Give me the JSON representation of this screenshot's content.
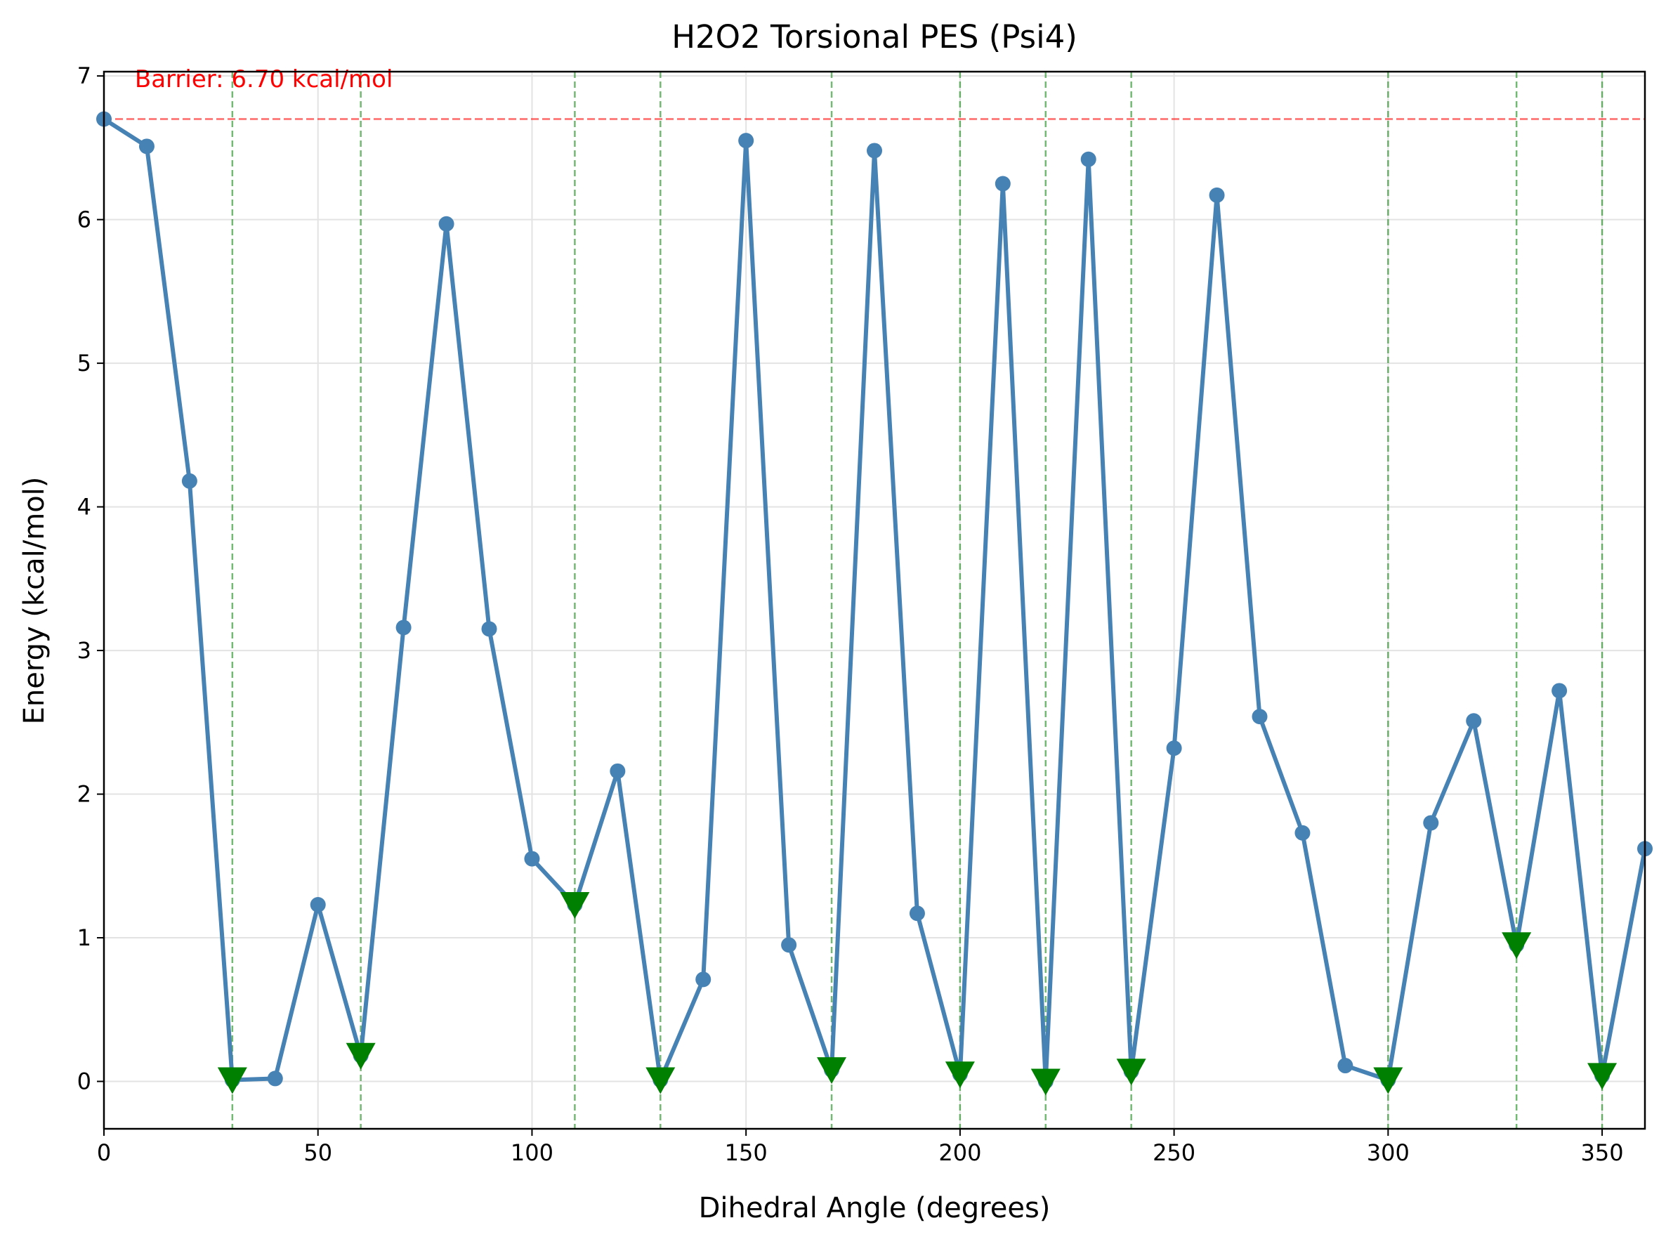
{
  "chart_data": {
    "type": "line",
    "title": "H2O2 Torsional PES (Psi4)",
    "xlabel": "Dihedral Angle (degrees)",
    "ylabel": "Energy (kcal/mol)",
    "xlim": [
      0,
      360
    ],
    "ylim": [
      -0.33,
      7.03
    ],
    "xticks": [
      0,
      50,
      100,
      150,
      200,
      250,
      300,
      350
    ],
    "yticks": [
      0,
      1,
      2,
      3,
      4,
      5,
      6,
      7
    ],
    "grid": true,
    "x": [
      0,
      10,
      20,
      30,
      40,
      50,
      60,
      70,
      80,
      90,
      100,
      110,
      120,
      130,
      140,
      150,
      160,
      170,
      180,
      190,
      200,
      210,
      220,
      230,
      240,
      250,
      260,
      270,
      280,
      290,
      300,
      310,
      320,
      330,
      340,
      350,
      360
    ],
    "series": [
      {
        "values": [
          6.7,
          6.51,
          4.18,
          0.01,
          0.02,
          1.23,
          0.18,
          3.16,
          5.97,
          3.15,
          1.55,
          1.23,
          2.16,
          0.01,
          0.71,
          6.55,
          0.95,
          0.08,
          6.48,
          1.17,
          0.05,
          6.25,
          0.0,
          6.42,
          0.07,
          2.32,
          6.17,
          2.54,
          1.73,
          0.11,
          0.01,
          1.8,
          2.51,
          0.95,
          2.72,
          0.04,
          1.62
        ],
        "color": "#4682b4"
      }
    ],
    "minima": {
      "x": [
        30,
        60,
        110,
        130,
        170,
        200,
        220,
        240,
        300,
        330,
        350
      ],
      "color": "#008000",
      "marker": "triangle-down"
    },
    "barrier": {
      "value": 6.7,
      "label": "Barrier: 6.70 kcal/mol",
      "color": "#ff0000"
    }
  }
}
